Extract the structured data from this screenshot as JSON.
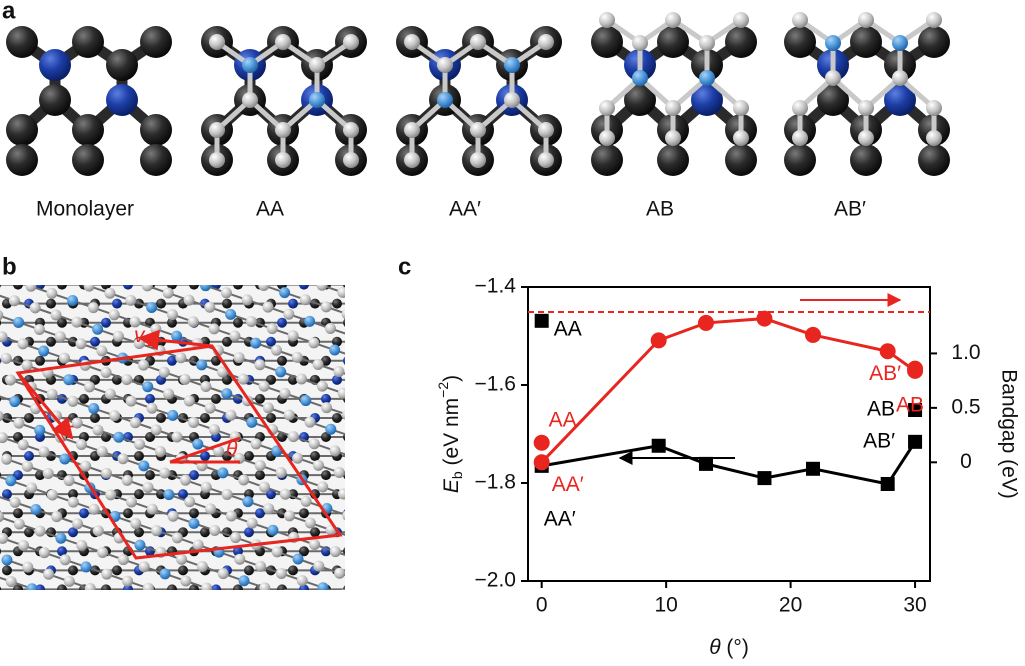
{
  "panel_labels": [
    "a",
    "b",
    "c"
  ],
  "structures": [
    "Monolayer",
    "AA",
    "AA′",
    "AB",
    "AB′"
  ],
  "lattice": {
    "v1": [
      "v",
      "1"
    ],
    "v2": [
      "v",
      "2"
    ],
    "angle": "θ"
  },
  "chart_data": {
    "type": "line",
    "xlabel": [
      "θ",
      " (°)"
    ],
    "ylabel": [
      "E",
      "b",
      " (eV nm",
      "−2",
      ")"
    ],
    "y2label": "Bandgap (eV)",
    "xlim": [
      -1.1,
      31.2
    ],
    "xticks": [
      0,
      10,
      20,
      30
    ],
    "ylim": [
      -2.0,
      -1.4
    ],
    "yticks": [
      {
        "value": -1.4,
        "label": "−1.4"
      },
      {
        "value": -1.6,
        "label": "−1.6"
      },
      {
        "value": -1.8,
        "label": "−1.8"
      },
      {
        "value": -2.0,
        "label": "−2.0"
      }
    ],
    "y2lim": [
      -1.09,
      1.61
    ],
    "y2ticks": [
      0,
      0.5,
      {
        "value": 1,
        "label": "1.0"
      }
    ],
    "hline": {
      "axis": "y2",
      "value": 1.38,
      "color": "#e8251f",
      "dashed": true
    },
    "series": [
      {
        "axis": "y",
        "color": "#000000",
        "marker": "square",
        "line": true,
        "x": [
          0,
          9.4,
          13.2,
          17.9,
          21.8,
          27.8,
          30
        ],
        "values": [
          -1.765,
          -1.724,
          -1.761,
          -1.79,
          -1.771,
          -1.802,
          -1.716
        ],
        "labels": [
          "AA′",
          null,
          null,
          null,
          null,
          null,
          "AB′"
        ]
      },
      {
        "axis": "y",
        "color": "#000000",
        "marker": "square",
        "line": false,
        "x": [
          0,
          30
        ],
        "values": [
          -1.469,
          -1.651
        ],
        "labels": [
          "AA",
          "AB"
        ]
      },
      {
        "axis": "y2",
        "color": "#e8251f",
        "marker": "circle",
        "line": true,
        "x": [
          0,
          9.4,
          13.2,
          17.9,
          21.8,
          27.8,
          30
        ],
        "values": [
          0.0,
          1.12,
          1.28,
          1.32,
          1.17,
          1.02,
          0.84
        ],
        "labels": [
          "AA′",
          null,
          null,
          null,
          null,
          null,
          "AB"
        ]
      },
      {
        "axis": "y2",
        "color": "#e8251f",
        "marker": "circle",
        "line": false,
        "x": [
          0,
          30
        ],
        "values": [
          0.18,
          0.86
        ],
        "labels": [
          "AA",
          "AB′"
        ]
      }
    ]
  }
}
